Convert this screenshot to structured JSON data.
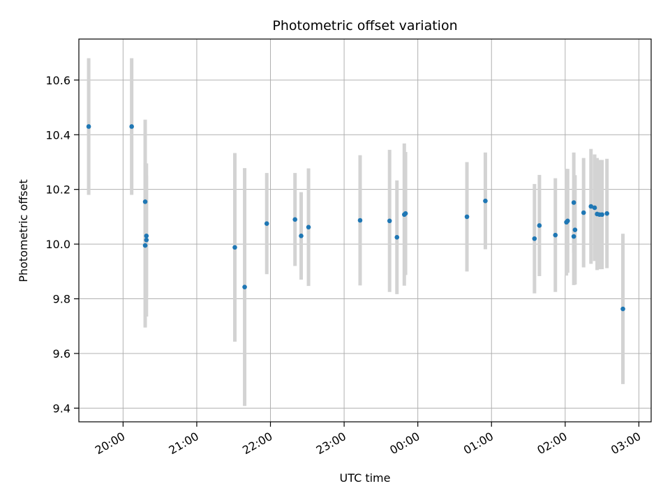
{
  "chart_data": {
    "type": "scatter",
    "title": "Photometric offset variation",
    "xlabel": "UTC time",
    "ylabel": "Photometric offset",
    "x_unit": "UTC time (HH:MM, 19:00 through 03:00 next day)",
    "xlim": [
      "19:24",
      "03:10"
    ],
    "ylim": [
      9.35,
      10.75
    ],
    "x_ticks": [
      "20:00",
      "21:00",
      "22:00",
      "23:00",
      "00:00",
      "01:00",
      "02:00",
      "03:00"
    ],
    "y_ticks": [
      9.4,
      9.6,
      9.8,
      10.0,
      10.2,
      10.4,
      10.6
    ],
    "grid": true,
    "point_color": "#1f77b4",
    "errorbar_color": "#d3d3d3",
    "points": [
      {
        "x": "19:32",
        "y": 10.43,
        "yerr": 0.25
      },
      {
        "x": "20:07",
        "y": 10.43,
        "yerr": 0.25
      },
      {
        "x": "20:18",
        "y": 10.155,
        "yerr": 0.3
      },
      {
        "x": "20:18",
        "y": 9.995,
        "yerr": 0.3
      },
      {
        "x": "20:19",
        "y": 10.015,
        "yerr": 0.28
      },
      {
        "x": "20:19",
        "y": 10.03,
        "yerr": 0.22
      },
      {
        "x": "21:31",
        "y": 9.988,
        "yerr": 0.345
      },
      {
        "x": "21:39",
        "y": 9.843,
        "yerr": 0.435
      },
      {
        "x": "21:57",
        "y": 10.075,
        "yerr": 0.185
      },
      {
        "x": "22:20",
        "y": 10.09,
        "yerr": 0.17
      },
      {
        "x": "22:25",
        "y": 10.03,
        "yerr": 0.16
      },
      {
        "x": "22:31",
        "y": 10.062,
        "yerr": 0.215
      },
      {
        "x": "23:13",
        "y": 10.087,
        "yerr": 0.238
      },
      {
        "x": "23:37",
        "y": 10.085,
        "yerr": 0.26
      },
      {
        "x": "23:43",
        "y": 10.025,
        "yerr": 0.208
      },
      {
        "x": "23:49",
        "y": 10.108,
        "yerr": 0.26
      },
      {
        "x": "23:50",
        "y": 10.112,
        "yerr": 0.225
      },
      {
        "x": "00:40",
        "y": 10.1,
        "yerr": 0.2
      },
      {
        "x": "00:55",
        "y": 10.158,
        "yerr": 0.177
      },
      {
        "x": "01:35",
        "y": 10.02,
        "yerr": 0.2
      },
      {
        "x": "01:39",
        "y": 10.068,
        "yerr": 0.185
      },
      {
        "x": "01:52",
        "y": 10.033,
        "yerr": 0.208
      },
      {
        "x": "02:01",
        "y": 10.08,
        "yerr": 0.195
      },
      {
        "x": "02:02",
        "y": 10.085,
        "yerr": 0.19
      },
      {
        "x": "02:07",
        "y": 10.152,
        "yerr": 0.183
      },
      {
        "x": "02:07",
        "y": 10.028,
        "yerr": 0.178
      },
      {
        "x": "02:08",
        "y": 10.052,
        "yerr": 0.2
      },
      {
        "x": "02:15",
        "y": 10.115,
        "yerr": 0.2
      },
      {
        "x": "02:21",
        "y": 10.138,
        "yerr": 0.21
      },
      {
        "x": "02:24",
        "y": 10.133,
        "yerr": 0.195
      },
      {
        "x": "02:26",
        "y": 10.11,
        "yerr": 0.205
      },
      {
        "x": "02:28",
        "y": 10.108,
        "yerr": 0.2
      },
      {
        "x": "02:30",
        "y": 10.108,
        "yerr": 0.2
      },
      {
        "x": "02:34",
        "y": 10.112,
        "yerr": 0.2
      },
      {
        "x": "02:47",
        "y": 9.763,
        "yerr": 0.275
      }
    ]
  }
}
